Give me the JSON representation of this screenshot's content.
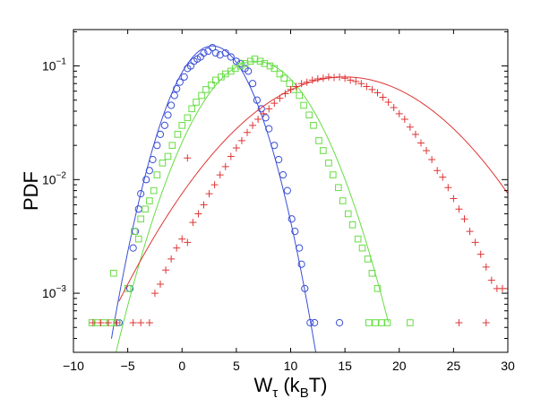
{
  "chart_data": {
    "type": "scatter",
    "title": "",
    "xlabel": {
      "main": "W",
      "sub": "τ",
      "paren_open": " (k",
      "paren_sub": "B",
      "paren_close": "T)"
    },
    "ylabel": "PDF",
    "xlim": [
      -10,
      30
    ],
    "ylim_log10": [
      -3.52,
      -0.68
    ],
    "y_scale": "log",
    "x_ticks": [
      {
        "v": -10,
        "label": "−10"
      },
      {
        "v": -5,
        "label": "−5"
      },
      {
        "v": 0,
        "label": "0"
      },
      {
        "v": 5,
        "label": "5"
      },
      {
        "v": 10,
        "label": "10"
      },
      {
        "v": 15,
        "label": "15"
      },
      {
        "v": 20,
        "label": "20"
      },
      {
        "v": 25,
        "label": "25"
      },
      {
        "v": 30,
        "label": "30"
      }
    ],
    "y_ticks": [
      {
        "exp": -1,
        "base": "10",
        "sup": "−1"
      },
      {
        "exp": -2,
        "base": "10",
        "sup": "−2"
      },
      {
        "exp": -3,
        "base": "10",
        "sup": "−3"
      }
    ],
    "grid": false,
    "legend": "none",
    "series": [
      {
        "marker": "circle",
        "color": "#3a4fd6",
        "fit_gaussian": {
          "mean": 2.8,
          "sigma": 2.7,
          "peak": 0.15,
          "x_range": [
            -6.5,
            13
          ]
        },
        "points": [
          [
            -6,
            0.00055
          ],
          [
            -5.8,
            0.00055
          ],
          [
            -4.8,
            0.0011
          ],
          [
            -4.5,
            0.0025
          ],
          [
            -4.3,
            0.0035
          ],
          [
            -4.0,
            0.0055
          ],
          [
            -3.8,
            0.0075
          ],
          [
            -3.3,
            0.01
          ],
          [
            -3.0,
            0.012
          ],
          [
            -2.7,
            0.015
          ],
          [
            -2.3,
            0.02
          ],
          [
            -2.0,
            0.025
          ],
          [
            -1.6,
            0.03
          ],
          [
            -1.3,
            0.037
          ],
          [
            -1.0,
            0.045
          ],
          [
            -0.7,
            0.055
          ],
          [
            -0.5,
            0.063
          ],
          [
            -0.2,
            0.072
          ],
          [
            0.2,
            0.08
          ],
          [
            0.5,
            0.095
          ],
          [
            0.8,
            0.1
          ],
          [
            1.1,
            0.11
          ],
          [
            1.4,
            0.115
          ],
          [
            1.7,
            0.12
          ],
          [
            2.0,
            0.13
          ],
          [
            2.4,
            0.135
          ],
          [
            2.8,
            0.145
          ],
          [
            3.1,
            0.13
          ],
          [
            3.5,
            0.125
          ],
          [
            4.0,
            0.13
          ],
          [
            4.5,
            0.12
          ],
          [
            5.0,
            0.11
          ],
          [
            5.4,
            0.105
          ],
          [
            5.8,
            0.095
          ],
          [
            6.1,
            0.09
          ],
          [
            6.5,
            0.07
          ],
          [
            6.9,
            0.05
          ],
          [
            7.3,
            0.042
          ],
          [
            7.7,
            0.035
          ],
          [
            8.0,
            0.028
          ],
          [
            8.5,
            0.02
          ],
          [
            8.9,
            0.015
          ],
          [
            9.3,
            0.011
          ],
          [
            9.7,
            0.008
          ],
          [
            10.1,
            0.0045
          ],
          [
            10.4,
            0.0035
          ],
          [
            10.8,
            0.0025
          ],
          [
            11.0,
            0.0018
          ],
          [
            11.3,
            0.0011
          ],
          [
            11.8,
            0.00055
          ],
          [
            12.2,
            0.00055
          ],
          [
            14.5,
            0.00055
          ]
        ]
      },
      {
        "marker": "square",
        "color": "#66dd44",
        "fit_gaussian": {
          "mean": 6.8,
          "sigma": 3.75,
          "peak": 0.11,
          "x_range": [
            -6.8,
            19
          ]
        },
        "points": [
          [
            -8.3,
            0.00055
          ],
          [
            -7.8,
            0.00055
          ],
          [
            -7.2,
            0.00055
          ],
          [
            -6.5,
            0.00055
          ],
          [
            -6.0,
            0.00055
          ],
          [
            -6.3,
            0.0015
          ],
          [
            -5.0,
            0.0011
          ],
          [
            -4.4,
            0.0035
          ],
          [
            -4.0,
            0.003
          ],
          [
            -3.8,
            0.0045
          ],
          [
            -3.4,
            0.0055
          ],
          [
            -3.0,
            0.0065
          ],
          [
            -2.6,
            0.008
          ],
          [
            -2.3,
            0.011
          ],
          [
            -1.8,
            0.014
          ],
          [
            -1.3,
            0.016
          ],
          [
            -0.9,
            0.02
          ],
          [
            -0.4,
            0.025
          ],
          [
            0.0,
            0.03
          ],
          [
            0.5,
            0.035
          ],
          [
            0.9,
            0.042
          ],
          [
            1.3,
            0.048
          ],
          [
            1.8,
            0.055
          ],
          [
            2.2,
            0.062
          ],
          [
            2.7,
            0.068
          ],
          [
            3.1,
            0.075
          ],
          [
            3.6,
            0.08
          ],
          [
            4.0,
            0.085
          ],
          [
            4.5,
            0.09
          ],
          [
            4.9,
            0.095
          ],
          [
            5.4,
            0.1
          ],
          [
            5.8,
            0.105
          ],
          [
            6.3,
            0.11
          ],
          [
            6.7,
            0.115
          ],
          [
            7.2,
            0.11
          ],
          [
            7.6,
            0.105
          ],
          [
            8.1,
            0.1
          ],
          [
            8.5,
            0.095
          ],
          [
            9.0,
            0.085
          ],
          [
            9.4,
            0.078
          ],
          [
            9.9,
            0.07
          ],
          [
            10.3,
            0.062
          ],
          [
            10.8,
            0.055
          ],
          [
            11.2,
            0.045
          ],
          [
            11.7,
            0.037
          ],
          [
            12.1,
            0.03
          ],
          [
            12.6,
            0.022
          ],
          [
            13.0,
            0.018
          ],
          [
            13.5,
            0.014
          ],
          [
            13.9,
            0.011
          ],
          [
            14.4,
            0.0085
          ],
          [
            14.8,
            0.0065
          ],
          [
            15.3,
            0.005
          ],
          [
            15.7,
            0.004
          ],
          [
            16.2,
            0.003
          ],
          [
            16.6,
            0.0025
          ],
          [
            17.1,
            0.002
          ],
          [
            17.5,
            0.0015
          ],
          [
            18.0,
            0.0011
          ],
          [
            17.2,
            0.00055
          ],
          [
            17.8,
            0.00055
          ],
          [
            18.4,
            0.00055
          ],
          [
            18.9,
            0.00055
          ],
          [
            21.0,
            0.00055
          ]
        ]
      },
      {
        "marker": "plus",
        "color": "#e03535",
        "fit_gaussian": {
          "mean": 15.0,
          "sigma": 6.9,
          "peak": 0.08,
          "x_range": [
            -5.8,
            30
          ]
        },
        "points": [
          [
            -8.2,
            0.00055
          ],
          [
            -7.5,
            0.00055
          ],
          [
            -6.8,
            0.00055
          ],
          [
            -6.0,
            0.00055
          ],
          [
            -4.5,
            0.00055
          ],
          [
            -3.8,
            0.00055
          ],
          [
            -3.0,
            0.00055
          ],
          [
            -2.5,
            0.001
          ],
          [
            -2.0,
            0.0012
          ],
          [
            -1.5,
            0.0016
          ],
          [
            -1.0,
            0.002
          ],
          [
            -0.5,
            0.0025
          ],
          [
            0.0,
            0.003
          ],
          [
            0.5,
            0.0028
          ],
          [
            0.5,
            0.0155
          ],
          [
            1.0,
            0.0042
          ],
          [
            1.5,
            0.005
          ],
          [
            2.0,
            0.006
          ],
          [
            2.5,
            0.0075
          ],
          [
            3.0,
            0.009
          ],
          [
            3.5,
            0.011
          ],
          [
            4.0,
            0.013
          ],
          [
            4.5,
            0.016
          ],
          [
            5.0,
            0.019
          ],
          [
            5.5,
            0.022
          ],
          [
            6.0,
            0.026
          ],
          [
            6.5,
            0.03
          ],
          [
            7.0,
            0.034
          ],
          [
            7.5,
            0.038
          ],
          [
            8.0,
            0.042
          ],
          [
            8.5,
            0.047
          ],
          [
            9.0,
            0.052
          ],
          [
            9.5,
            0.057
          ],
          [
            10.0,
            0.062
          ],
          [
            10.5,
            0.066
          ],
          [
            11.0,
            0.07
          ],
          [
            11.5,
            0.072
          ],
          [
            12.0,
            0.075
          ],
          [
            12.5,
            0.077
          ],
          [
            13.0,
            0.078
          ],
          [
            13.5,
            0.08
          ],
          [
            14.0,
            0.079
          ],
          [
            14.5,
            0.08
          ],
          [
            15.0,
            0.078
          ],
          [
            15.5,
            0.075
          ],
          [
            16.0,
            0.073
          ],
          [
            16.5,
            0.07
          ],
          [
            17.0,
            0.066
          ],
          [
            17.5,
            0.062
          ],
          [
            18.0,
            0.058
          ],
          [
            18.5,
            0.053
          ],
          [
            19.0,
            0.048
          ],
          [
            19.5,
            0.043
          ],
          [
            20.0,
            0.038
          ],
          [
            20.5,
            0.034
          ],
          [
            21.0,
            0.029
          ],
          [
            21.5,
            0.025
          ],
          [
            22.0,
            0.021
          ],
          [
            22.5,
            0.018
          ],
          [
            23.0,
            0.015
          ],
          [
            23.5,
            0.012
          ],
          [
            24.0,
            0.0105
          ],
          [
            24.5,
            0.0085
          ],
          [
            25.0,
            0.0068
          ],
          [
            25.5,
            0.0055
          ],
          [
            26.0,
            0.0045
          ],
          [
            26.5,
            0.0035
          ],
          [
            27.0,
            0.0028
          ],
          [
            27.5,
            0.0022
          ],
          [
            28.0,
            0.0017
          ],
          [
            28.5,
            0.0013
          ],
          [
            29.0,
            0.0011
          ],
          [
            29.5,
            0.0011
          ],
          [
            30.0,
            0.0011
          ],
          [
            25.5,
            0.00055
          ],
          [
            28.0,
            0.00055
          ]
        ]
      }
    ]
  }
}
